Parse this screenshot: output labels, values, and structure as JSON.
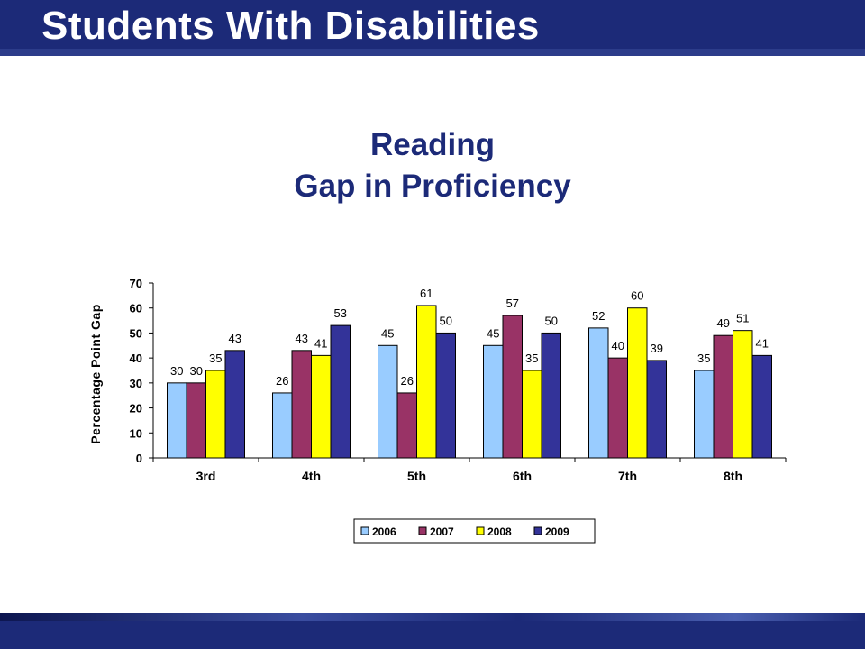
{
  "slide": {
    "title": "Students With Disabilities"
  },
  "colors": {
    "brand": "#1c2a78"
  },
  "chart_data": {
    "type": "bar",
    "title": "Reading",
    "subtitle": "Gap in Proficiency",
    "xlabel": "",
    "ylabel": "Percentage Point Gap",
    "ylim": [
      0,
      70
    ],
    "yticks": [
      0,
      10,
      20,
      30,
      40,
      50,
      60,
      70
    ],
    "categories": [
      "3rd",
      "4th",
      "5th",
      "6th",
      "7th",
      "8th"
    ],
    "series": [
      {
        "name": "2006",
        "color": "#99ccff",
        "values": [
          30,
          26,
          45,
          45,
          52,
          35
        ]
      },
      {
        "name": "2007",
        "color": "#993366",
        "values": [
          30,
          43,
          26,
          57,
          40,
          49
        ]
      },
      {
        "name": "2008",
        "color": "#ffff00",
        "values": [
          35,
          41,
          61,
          35,
          60,
          51
        ]
      },
      {
        "name": "2009",
        "color": "#333399",
        "values": [
          43,
          53,
          50,
          50,
          39,
          41
        ]
      }
    ],
    "legend": "bottom",
    "grid": false
  }
}
